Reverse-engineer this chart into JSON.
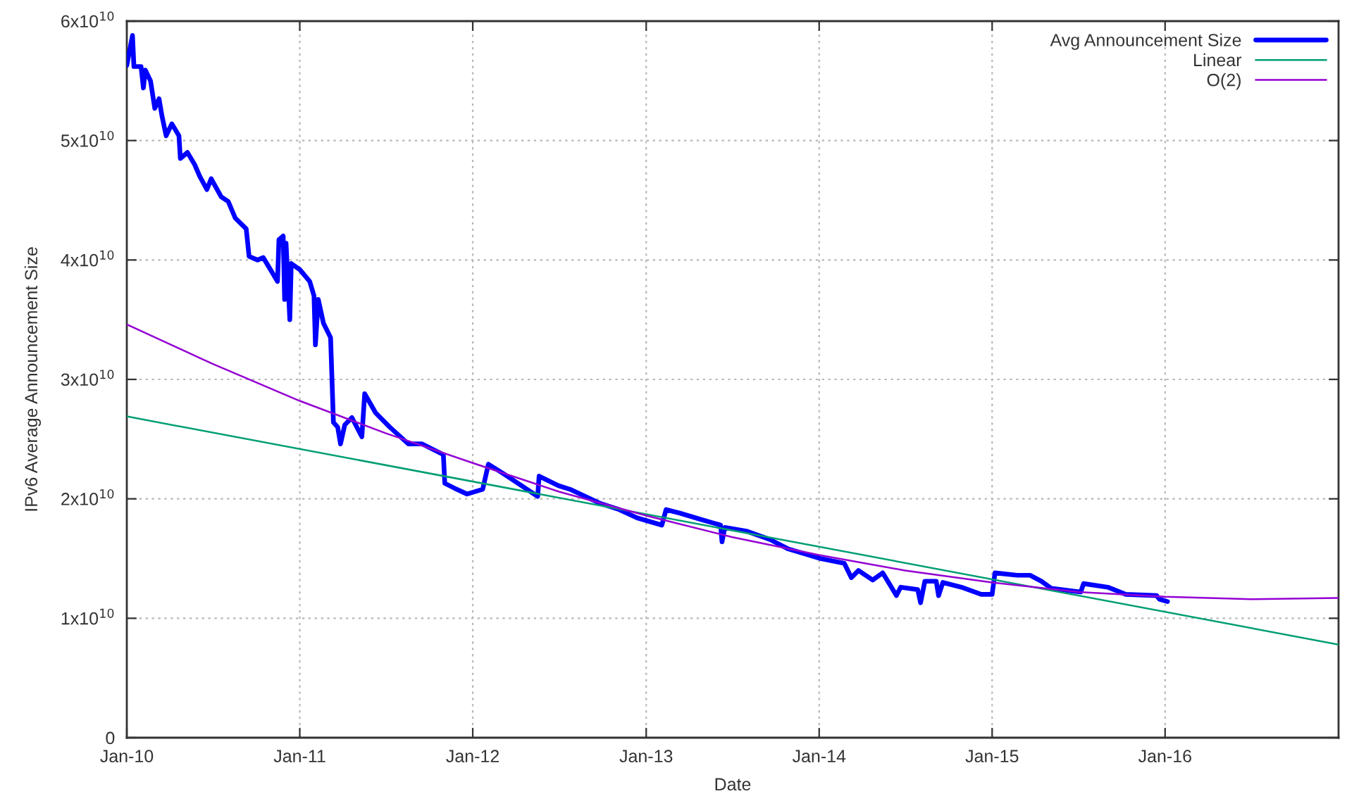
{
  "chart_data": {
    "type": "line",
    "xlabel": "Date",
    "ylabel": "IPv6 Average Announcement Size",
    "xlim": [
      "2010-01",
      "2017-01"
    ],
    "xticks": [
      {
        "value": "2010-01",
        "label": "Jan-10"
      },
      {
        "value": "2011-01",
        "label": "Jan-11"
      },
      {
        "value": "2012-01",
        "label": "Jan-12"
      },
      {
        "value": "2013-01",
        "label": "Jan-13"
      },
      {
        "value": "2014-01",
        "label": "Jan-14"
      },
      {
        "value": "2015-01",
        "label": "Jan-15"
      },
      {
        "value": "2016-01",
        "label": "Jan-16"
      }
    ],
    "ylim": [
      0,
      60000000000
    ],
    "yticks": [
      0,
      {
        "value": 10000000000,
        "label": "1x10$^{10}$"
      },
      {
        "value": 20000000000,
        "label": "2x10$^{10}$"
      },
      {
        "value": 30000000000,
        "label": "3x10$^{10}$"
      },
      {
        "value": 40000000000,
        "label": "4x10$^{10}$"
      },
      {
        "value": 50000000000,
        "label": "5x10$^{10}$"
      },
      {
        "value": 60000000000,
        "label": "6x10$^{10}$"
      }
    ],
    "grid": true,
    "legend": "top right",
    "line_style": "solid",
    "series": [
      {
        "name": "Avg Announcement Size",
        "color": "#0000ff",
        "x": [
          "2010-01-01",
          "2010-01-13",
          "2010-01-16",
          "2010-01-31",
          "2010-02-05",
          "2010-02-09",
          "2010-02-20",
          "2010-03-01",
          "2010-03-10",
          "2010-03-16",
          "2010-03-25",
          "2010-04-06",
          "2010-04-21",
          "2010-04-24",
          "2010-05-09",
          "2010-05-24",
          "2010-06-04",
          "2010-06-19",
          "2010-06-28",
          "2010-07-19",
          "2010-08-03",
          "2010-08-18",
          "2010-09-10",
          "2010-09-16",
          "2010-10-04",
          "2010-10-16",
          "2010-11-03",
          "2010-11-15",
          "2010-11-18",
          "2010-11-27",
          "2010-11-30",
          "2010-12-03",
          "2010-12-11",
          "2010-12-14",
          "2011-01-01",
          "2011-01-22",
          "2011-01-31",
          "2011-02-03",
          "2011-02-09",
          "2011-02-20",
          "2011-03-07",
          "2011-03-13",
          "2011-03-22",
          "2011-03-28",
          "2011-04-06",
          "2011-04-21",
          "2011-05-12",
          "2011-05-18",
          "2011-06-10",
          "2011-07-10",
          "2011-08-18",
          "2011-09-16",
          "2011-10-31",
          "2011-11-03",
          "2011-11-23",
          "2011-12-20",
          "2012-01-22",
          "2012-02-03",
          "2012-03-06",
          "2012-05-17",
          "2012-05-20",
          "2012-06-30",
          "2012-07-24",
          "2012-09-27",
          "2012-11-05",
          "2012-12-13",
          "2013-02-03",
          "2013-02-12",
          "2013-03-13",
          "2013-05-03",
          "2013-06-07",
          "2013-06-10",
          "2013-06-16",
          "2013-07-31",
          "2013-09-19",
          "2013-10-28",
          "2014-01-04",
          "2014-02-23",
          "2014-03-10",
          "2014-03-25",
          "2014-04-24",
          "2014-05-15",
          "2014-05-29",
          "2014-06-13",
          "2014-06-22",
          "2014-07-28",
          "2014-08-03",
          "2014-08-12",
          "2014-09-05",
          "2014-09-10",
          "2014-09-19",
          "2014-10-28",
          "2014-12-09",
          "2015-01-01",
          "2015-01-07",
          "2015-02-23",
          "2015-03-22",
          "2015-04-15",
          "2015-05-06",
          "2015-07-07",
          "2015-07-13",
          "2015-09-02",
          "2015-10-10",
          "2015-12-14",
          "2015-12-20",
          "2016-01-06"
        ],
        "values": [
          56300000000,
          58800000000,
          56200000000,
          56200000000,
          54400000000,
          55900000000,
          55000000000,
          52700000000,
          53500000000,
          52100000000,
          50400000000,
          51400000000,
          50400000000,
          48500000000,
          49000000000,
          48000000000,
          47000000000,
          45900000000,
          46800000000,
          45300000000,
          44900000000,
          43500000000,
          42600000000,
          40300000000,
          40000000000,
          40200000000,
          39000000000,
          38200000000,
          41700000000,
          42000000000,
          36700000000,
          41400000000,
          35000000000,
          39700000000,
          39200000000,
          38200000000,
          37000000000,
          32900000000,
          36700000000,
          34700000000,
          33500000000,
          26400000000,
          26000000000,
          24600000000,
          26200000000,
          26800000000,
          25200000000,
          28800000000,
          27200000000,
          26000000000,
          24600000000,
          24600000000,
          23700000000,
          21300000000,
          20900000000,
          20400000000,
          20800000000,
          22900000000,
          22100000000,
          20200000000,
          21900000000,
          21100000000,
          20800000000,
          19600000000,
          19100000000,
          18400000000,
          17800000000,
          19100000000,
          18800000000,
          18200000000,
          17800000000,
          16400000000,
          17600000000,
          17300000000,
          16600000000,
          15800000000,
          15000000000,
          14600000000,
          13400000000,
          14000000000,
          13200000000,
          13800000000,
          12900000000,
          11900000000,
          12600000000,
          12400000000,
          11300000000,
          13100000000,
          13100000000,
          11900000000,
          13000000000,
          12600000000,
          12000000000,
          12000000000,
          13800000000,
          13600000000,
          13600000000,
          13100000000,
          12500000000,
          12200000000,
          12900000000,
          12600000000,
          12000000000,
          11900000000,
          11600000000,
          11400000000
        ]
      },
      {
        "name": "Linear",
        "color": "#009e73",
        "x": [
          "2010-01",
          "2017-01"
        ],
        "values": [
          26900000000,
          7800000000
        ]
      },
      {
        "name": "O(2)",
        "color": "#9400d3",
        "x": [
          "2010-01",
          "2010-07",
          "2011-01",
          "2011-07",
          "2012-01",
          "2012-07",
          "2013-01",
          "2013-07",
          "2014-01",
          "2014-07",
          "2015-01",
          "2015-07",
          "2016-01",
          "2016-07",
          "2017-01"
        ],
        "values": [
          34600000000,
          31300000000,
          28200000000,
          25500000000,
          23000000000,
          20600000000,
          18600000000,
          16800000000,
          15300000000,
          14000000000,
          13000000000,
          12200000000,
          11800000000,
          11600000000,
          11700000000
        ]
      }
    ]
  }
}
